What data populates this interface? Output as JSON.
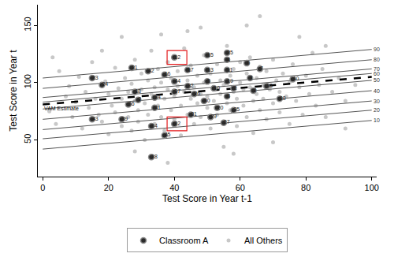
{
  "chart_data": {
    "type": "scatter",
    "xlabel": "Test Score in Year t-1",
    "ylabel": "Test Score in Year t",
    "xlim": [
      -1.5,
      101.5
    ],
    "ylim": [
      18,
      168
    ],
    "xticks": [
      0,
      20,
      40,
      60,
      80,
      100
    ],
    "yticks": [
      50,
      100,
      150
    ],
    "grid": false,
    "legend": "bottom",
    "series": [
      {
        "name": "Classroom A",
        "color": "#2b2b2b",
        "marker": "circle",
        "x": [
          63,
          58,
          29,
          56,
          50,
          62,
          66,
          56,
          64,
          52,
          56,
          40,
          50,
          34,
          50,
          37,
          44,
          28,
          56,
          53,
          27,
          40,
          15,
          18,
          56,
          46,
          55,
          33,
          51,
          49,
          45,
          44,
          68,
          33,
          58,
          26,
          40,
          72,
          24,
          76,
          34,
          32,
          15,
          40,
          37
        ],
        "y": [
          104,
          95,
          85,
          120,
          101,
          117,
          112,
          88,
          93,
          95,
          111,
          122,
          111,
          87,
          124,
          107,
          111,
          92,
          101,
          78,
          113,
          64,
          104,
          98,
          126,
          90,
          65,
          35,
          70,
          84,
          72,
          97,
          97,
          62,
          76,
          81,
          92,
          86,
          68,
          103,
          78,
          110,
          68,
          101,
          54
        ],
        "labels": [
          "1",
          "2",
          "3",
          "4",
          "5",
          "6",
          "7",
          "8",
          "9",
          "10",
          "11",
          "12",
          "13",
          "14",
          "15",
          "16",
          "17",
          "18",
          "19",
          "20",
          "21",
          "22",
          "23",
          "24",
          "25",
          "26",
          "27",
          "28",
          "29",
          "30",
          "31",
          "32",
          "33",
          "34",
          "35",
          "36",
          "37",
          "38",
          "39",
          "40",
          "41",
          "42",
          "43",
          "44",
          "45"
        ]
      },
      {
        "name": "All Others",
        "color": "#c8c8c8",
        "marker": "circle",
        "x": [
          2,
          4,
          5,
          7,
          8,
          9,
          10,
          11,
          12,
          13,
          14,
          15,
          16,
          17,
          18,
          19,
          20,
          20,
          21,
          22,
          22,
          23,
          24,
          24,
          25,
          26,
          26,
          27,
          27,
          28,
          28,
          29,
          29,
          30,
          30,
          31,
          31,
          32,
          32,
          33,
          33,
          34,
          34,
          35,
          35,
          36,
          36,
          37,
          37,
          38,
          38,
          39,
          39,
          40,
          40,
          41,
          41,
          42,
          42,
          43,
          43,
          44,
          44,
          45,
          45,
          46,
          46,
          47,
          47,
          48,
          48,
          49,
          49,
          50,
          50,
          51,
          51,
          52,
          52,
          53,
          53,
          54,
          54,
          55,
          55,
          56,
          56,
          57,
          57,
          58,
          58,
          59,
          59,
          60,
          60,
          61,
          61,
          62,
          62,
          63,
          63,
          64,
          64,
          65,
          65,
          66,
          66,
          67,
          67,
          68,
          68,
          69,
          70,
          70,
          71,
          72,
          72,
          73,
          74,
          75,
          75,
          76,
          77,
          78,
          79,
          80,
          81,
          82,
          83,
          84,
          85,
          86,
          88,
          90,
          92,
          95,
          3,
          44,
          62,
          78,
          36,
          55,
          28,
          70,
          48,
          86,
          18,
          92,
          38,
          58,
          66,
          24
        ],
        "y": [
          75,
          64,
          110,
          88,
          97,
          70,
          83,
          105,
          60,
          92,
          78,
          118,
          86,
          72,
          66,
          101,
          90,
          55,
          80,
          113,
          74,
          95,
          62,
          86,
          104,
          70,
          92,
          58,
          99,
          84,
          120,
          76,
          66,
          108,
          94,
          50,
          82,
          102,
          72,
          90,
          128,
          64,
          96,
          80,
          112,
          70,
          100,
          86,
          58,
          94,
          118,
          76,
          104,
          88,
          68,
          110,
          97,
          80,
          54,
          92,
          130,
          72,
          102,
          86,
          115,
          64,
          96,
          82,
          106,
          90,
          70,
          124,
          100,
          78,
          88,
          60,
          108,
          94,
          84,
          116,
          72,
          102,
          90,
          66,
          98,
          82,
          132,
          106,
          76,
          92,
          112,
          86,
          62,
          100,
          118,
          80,
          94,
          108,
          70,
          96,
          122,
          84,
          56,
          104,
          90,
          76,
          114,
          98,
          86,
          68,
          110,
          94,
          120,
          82,
          102,
          74,
          92,
          108,
          88,
          64,
          100,
          116,
          84,
          96,
          72,
          106,
          90,
          126,
          80,
          98,
          112,
          70,
          92,
          104,
          84,
          98,
          122,
          145,
          150,
          140,
          142,
          44,
          40,
          48,
          148,
          132,
          128,
          60,
          30,
          38,
          158,
          140
        ]
      }
    ],
    "reference_lines": [
      {
        "label": "90",
        "x": [
          0,
          100
        ],
        "y": [
          104,
          129
        ],
        "line_style": "solid"
      },
      {
        "label": "80",
        "x": [
          0,
          100
        ],
        "y": [
          95,
          120
        ],
        "line_style": "solid"
      },
      {
        "label": "70",
        "x": [
          0,
          100
        ],
        "y": [
          87,
          112
        ],
        "line_style": "solid"
      },
      {
        "label": "60",
        "x": [
          0,
          100
        ],
        "y": [
          83,
          108
        ],
        "line_style": "solid"
      },
      {
        "label": "VAM Estimate",
        "x": [
          0,
          100
        ],
        "y": [
          81,
          105
        ],
        "line_style": "dashed"
      },
      {
        "label": "50",
        "x": [
          0,
          100
        ],
        "y": [
          77,
          102
        ],
        "line_style": "solid"
      },
      {
        "label": "40",
        "x": [
          0,
          100
        ],
        "y": [
          68,
          93
        ],
        "line_style": "solid"
      },
      {
        "label": "30",
        "x": [
          0,
          100
        ],
        "y": [
          59,
          84
        ],
        "line_style": "solid"
      },
      {
        "label": "20",
        "x": [
          0,
          100
        ],
        "y": [
          51,
          76
        ],
        "line_style": "solid"
      },
      {
        "label": "10",
        "x": [
          0,
          100
        ],
        "y": [
          42,
          67
        ],
        "line_style": "solid"
      }
    ],
    "highlighted": {
      "labels": [
        "12",
        "22"
      ],
      "color": "#e31a1c"
    }
  }
}
